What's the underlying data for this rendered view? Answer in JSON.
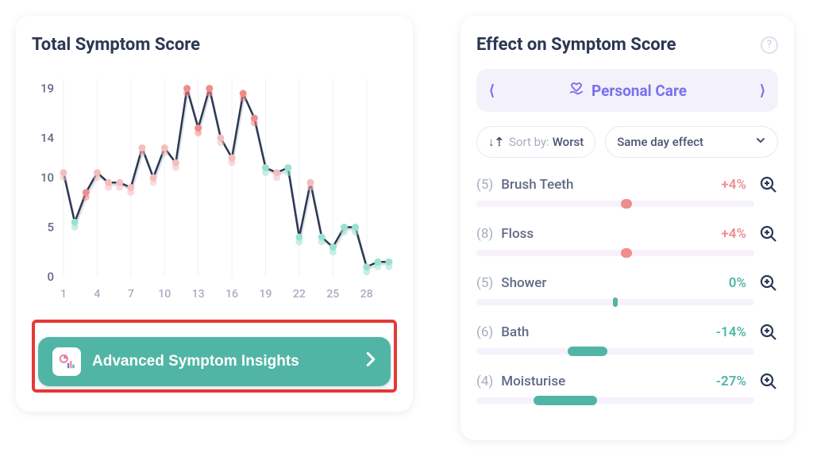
{
  "colors": {
    "text_dark": "#2b3754",
    "text_mid": "#616a85",
    "text_light": "#a6adc0",
    "accent_purple": "#7a6ff0",
    "accent_teal": "#51b5a5",
    "accent_teal_light": "#9ae2cf",
    "accent_salmon": "#f08c8c",
    "accent_pink": "#f5bdbd",
    "bar_bg": "#f6f1fa",
    "card_shadow": "rgba(0,0,0,0.08)",
    "highlight_red": "#e53935",
    "line_color": "#2b3754",
    "xgrid": "#eef0f5"
  },
  "left": {
    "title": "Total Symptom Score",
    "insights_button": "Advanced Symptom Insights",
    "chart": {
      "type": "line",
      "ylim": [
        0,
        20
      ],
      "yticks": [
        0,
        5,
        10,
        14,
        19
      ],
      "xticks": [
        1,
        4,
        7,
        10,
        13,
        16,
        19,
        22,
        25,
        28
      ],
      "line_color": "#2b3754",
      "line_width": 2.5,
      "marker_radius": 4.5,
      "pair_offset_y": 6,
      "points": [
        {
          "x": 1,
          "y": 10.5,
          "c": "#f5bdbd"
        },
        {
          "x": 2,
          "y": 5.5,
          "c": "#9ae2cf"
        },
        {
          "x": 3,
          "y": 8.5,
          "c": "#f08c8c"
        },
        {
          "x": 4,
          "y": 10.5,
          "c": "#f5bdbd"
        },
        {
          "x": 5,
          "y": 9.5,
          "c": "#f5bdbd"
        },
        {
          "x": 6,
          "y": 9.5,
          "c": "#f5bdbd"
        },
        {
          "x": 7,
          "y": 9.0,
          "c": "#f5bdbd"
        },
        {
          "x": 8,
          "y": 13.0,
          "c": "#f5bdbd"
        },
        {
          "x": 9,
          "y": 10.0,
          "c": "#f5bdbd"
        },
        {
          "x": 10,
          "y": 13.0,
          "c": "#f5bdbd"
        },
        {
          "x": 11,
          "y": 11.5,
          "c": "#f5bdbd"
        },
        {
          "x": 12,
          "y": 19.0,
          "c": "#f08c8c"
        },
        {
          "x": 13,
          "y": 15.0,
          "c": "#f08c8c"
        },
        {
          "x": 14,
          "y": 19.0,
          "c": "#f08c8c"
        },
        {
          "x": 15,
          "y": 14.0,
          "c": "#f5bdbd"
        },
        {
          "x": 16,
          "y": 12.0,
          "c": "#f5bdbd"
        },
        {
          "x": 17,
          "y": 18.5,
          "c": "#f08c8c"
        },
        {
          "x": 18,
          "y": 16.0,
          "c": "#f08c8c"
        },
        {
          "x": 19,
          "y": 11.0,
          "c": "#9ae2cf"
        },
        {
          "x": 20,
          "y": 10.5,
          "c": "#f5bdbd"
        },
        {
          "x": 21,
          "y": 11.0,
          "c": "#9ae2cf"
        },
        {
          "x": 22,
          "y": 4.0,
          "c": "#9ae2cf"
        },
        {
          "x": 23,
          "y": 9.5,
          "c": "#f5bdbd"
        },
        {
          "x": 24,
          "y": 4.0,
          "c": "#9ae2cf"
        },
        {
          "x": 25,
          "y": 3.0,
          "c": "#9ae2cf"
        },
        {
          "x": 26,
          "y": 5.0,
          "c": "#9ae2cf"
        },
        {
          "x": 27,
          "y": 5.0,
          "c": "#9ae2cf"
        },
        {
          "x": 28,
          "y": 1.0,
          "c": "#9ae2cf"
        },
        {
          "x": 29,
          "y": 1.5,
          "c": "#9ae2cf"
        },
        {
          "x": 30,
          "y": 1.5,
          "c": "#9ae2cf"
        }
      ]
    }
  },
  "right": {
    "title": "Effect on Symptom Score",
    "category": "Personal Care",
    "sort_label": "Sort by:",
    "sort_value": "Worst",
    "dropdown_value": "Same day effect",
    "items": [
      {
        "count": 5,
        "name": "Brush Teeth",
        "pct": "+4%",
        "pct_color": "#f08c8c",
        "marker_pos": 0.54,
        "marker_w": 14,
        "marker_color": "#f08c8c"
      },
      {
        "count": 8,
        "name": "Floss",
        "pct": "+4%",
        "pct_color": "#f08c8c",
        "marker_pos": 0.54,
        "marker_w": 14,
        "marker_color": "#f08c8c"
      },
      {
        "count": 5,
        "name": "Shower",
        "pct": "0%",
        "pct_color": "#51b5a5",
        "marker_pos": 0.5,
        "marker_w": 6,
        "marker_color": "#51b5a5"
      },
      {
        "count": 6,
        "name": "Bath",
        "pct": "-14%",
        "pct_color": "#51b5a5",
        "marker_pos": 0.4,
        "marker_w": 50,
        "marker_color": "#51b5a5"
      },
      {
        "count": 4,
        "name": "Moisturise",
        "pct": "-27%",
        "pct_color": "#51b5a5",
        "marker_pos": 0.32,
        "marker_w": 80,
        "marker_color": "#51b5a5"
      }
    ]
  }
}
